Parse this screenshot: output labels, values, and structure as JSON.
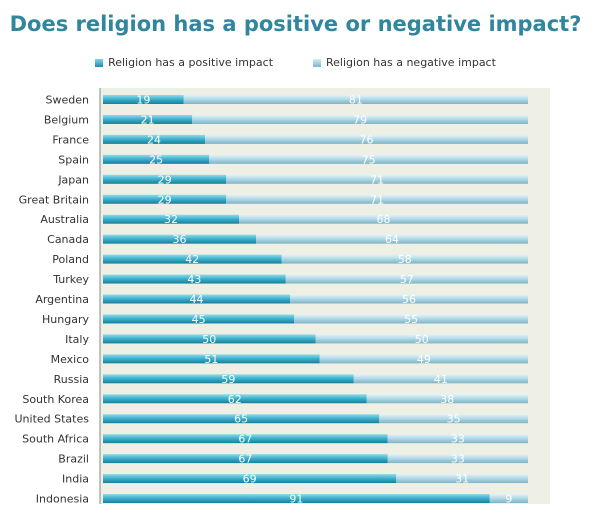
{
  "chart_data": {
    "type": "bar",
    "stacked": true,
    "orientation": "horizontal",
    "title": "Does religion has a positive or negative impact?",
    "legend_position": "top",
    "xlim": [
      0,
      100
    ],
    "categories": [
      "Sweden",
      "Belgium",
      "France",
      "Spain",
      "Japan",
      "Great Britain",
      "Australia",
      "Canada",
      "Poland",
      "Turkey",
      "Argentina",
      "Hungary",
      "Italy",
      "Mexico",
      "Russia",
      "South Korea",
      "United States",
      "South Africa",
      "Brazil",
      "India",
      "Indonesia"
    ],
    "series": [
      {
        "name": "Religion has a positive impact",
        "values": [
          19,
          21,
          24,
          25,
          29,
          29,
          32,
          36,
          42,
          43,
          44,
          45,
          50,
          51,
          59,
          62,
          65,
          67,
          67,
          69,
          91
        ],
        "color": "#2aa0bd"
      },
      {
        "name": "Religion has a negative impact",
        "values": [
          81,
          79,
          76,
          75,
          71,
          71,
          68,
          64,
          58,
          57,
          56,
          55,
          50,
          49,
          41,
          38,
          35,
          33,
          33,
          31,
          9
        ],
        "color": "#a9d6e5"
      }
    ]
  }
}
